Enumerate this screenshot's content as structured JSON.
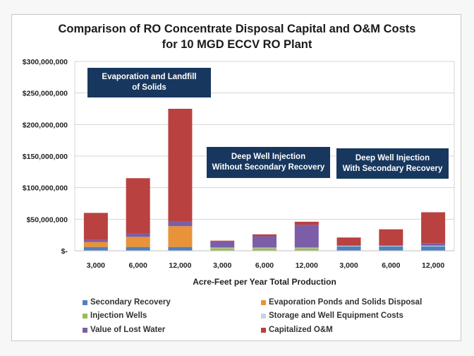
{
  "chart_data": {
    "type": "bar",
    "stacked": true,
    "title": "Comparison of RO Concentrate Disposal Capital and O&M Costs",
    "subtitle": "for 10 MGD ECCV RO Plant",
    "xlabel": "Acre-Feet per Year Total Production",
    "ylabel": "",
    "ylim": [
      0,
      300000000
    ],
    "yticks": [
      0,
      50000000,
      100000000,
      150000000,
      200000000,
      250000000,
      300000000
    ],
    "ytick_labels": [
      "$-",
      "$50,000,000",
      "$100,000,000",
      "$150,000,000",
      "$200,000,000",
      "$250,000,000",
      "$300,000,000"
    ],
    "grid": true,
    "legend_position": "bottom",
    "categories": [
      "3,000",
      "6,000",
      "12,000",
      "3,000",
      "6,000",
      "12,000",
      "3,000",
      "6,000",
      "12,000"
    ],
    "series": [
      {
        "name": "Secondary Recovery",
        "color": "#4f81bd",
        "values": [
          6000000,
          6000000,
          6000000,
          0,
          0,
          0,
          7000000,
          7000000,
          7000000
        ]
      },
      {
        "name": "Evaporation Ponds and Solids Disposal",
        "color": "#e8923a",
        "values": [
          8000000,
          16000000,
          33000000,
          0,
          0,
          0,
          0,
          0,
          0
        ]
      },
      {
        "name": "Injection Wells",
        "color": "#9bbb59",
        "values": [
          0,
          0,
          0,
          4000000,
          4000000,
          4000000,
          0,
          0,
          0
        ]
      },
      {
        "name": "Storage and Well Equipment Costs",
        "color": "#c6d4e8",
        "values": [
          0,
          0,
          0,
          1000000,
          1000000,
          1000000,
          1000000,
          1000000,
          1000000
        ]
      },
      {
        "name": "Value of Lost Water",
        "color": "#7b5ea7",
        "values": [
          3000000,
          6000000,
          8000000,
          10000000,
          18000000,
          36000000,
          0,
          0,
          4000000
        ]
      },
      {
        "name": "Capitalized O&M",
        "color": "#b9413f",
        "values": [
          43000000,
          87000000,
          178000000,
          1000000,
          3000000,
          5000000,
          13000000,
          26000000,
          49000000
        ]
      }
    ],
    "annotations": [
      {
        "text_line1": "Evaporation and Landfill",
        "text_line2": "of Solids",
        "group": [
          "3,000",
          "6,000",
          "12,000"
        ]
      },
      {
        "text_line1": "Deep Well Injection",
        "text_line2": "Without Secondary Recovery",
        "group": [
          "3,000",
          "6,000",
          "12,000"
        ]
      },
      {
        "text_line1": "Deep Well Injection",
        "text_line2": "With Secondary Recovery",
        "group": [
          "3,000",
          "6,000",
          "12,000"
        ]
      }
    ]
  },
  "legend": [
    {
      "label": "Secondary Recovery",
      "color": "#4f81bd"
    },
    {
      "label": "Evaporation Ponds and Solids Disposal",
      "color": "#e8923a"
    },
    {
      "label": "Injection Wells",
      "color": "#9bbb59"
    },
    {
      "label": "Storage and Well Equipment Costs",
      "color": "#c6d4e8"
    },
    {
      "label": "Value of Lost Water",
      "color": "#7b5ea7"
    },
    {
      "label": "Capitalized O&M",
      "color": "#b9413f"
    }
  ],
  "annotation_color": "#17375e"
}
